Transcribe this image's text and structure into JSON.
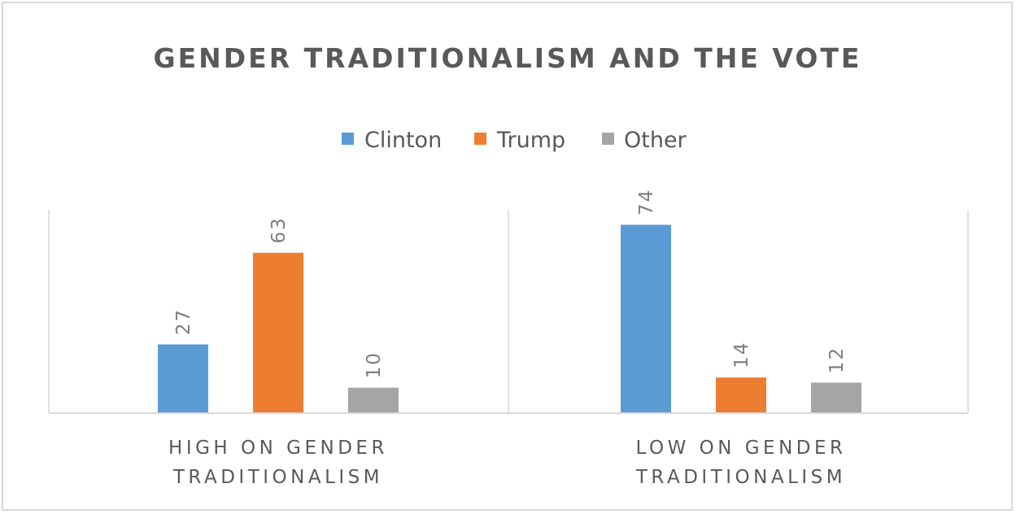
{
  "chart_data": {
    "type": "bar",
    "title": "GENDER TRADITIONALISM AND THE VOTE",
    "categories": [
      [
        "HIGH ON GENDER",
        "TRADITIONALISM"
      ],
      [
        "LOW ON GENDER",
        "TRADITIONALISM"
      ]
    ],
    "series": [
      {
        "name": "Clinton",
        "color": "#5b9bd5",
        "values": [
          27,
          74
        ]
      },
      {
        "name": "Trump",
        "color": "#ed7d31",
        "values": [
          63,
          14
        ]
      },
      {
        "name": "Other",
        "color": "#a5a5a5",
        "values": [
          10,
          12
        ]
      }
    ],
    "ylim": [
      0,
      80
    ],
    "legend_position": "top",
    "data_labels": "rotated",
    "grid": false
  }
}
